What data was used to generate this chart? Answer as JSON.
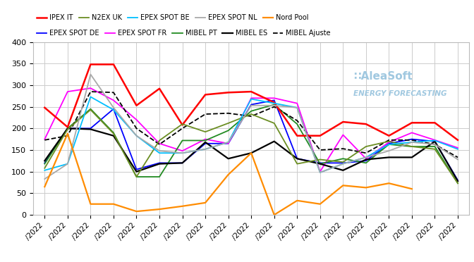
{
  "top_legend_names": [
    "EPEX SPOT DE",
    "EPEX SPOT FR",
    "MIBEL PT",
    "MIBEL ES",
    "MIBEL Ajuste"
  ],
  "bot_legend_names": [
    "IPEX IT",
    "N2EX UK",
    "EPEX SPOT BE",
    "EPEX SPOT NL",
    "Nord Pool"
  ],
  "x_labels": [
    "/2022",
    "/2022",
    "/2022",
    "/2022",
    "/2022",
    "/2022",
    "/2022",
    "/2022",
    "/2022",
    "/2022",
    "/2022",
    "/2022",
    "/2022",
    "/2022",
    "/2022",
    "/2022",
    "/2022",
    "/2022",
    "/2022"
  ],
  "series": {
    "EPEX SPOT DE": {
      "color": "#0000FF",
      "linewidth": 1.3,
      "linestyle": "solid",
      "values": [
        120,
        200,
        200,
        245,
        105,
        120,
        120,
        165,
        165,
        255,
        265,
        130,
        120,
        120,
        125,
        165,
        175,
        170,
        80
      ]
    },
    "EPEX SPOT FR": {
      "color": "#FF00FF",
      "linewidth": 1.3,
      "linestyle": "solid",
      "values": [
        175,
        285,
        293,
        265,
        220,
        165,
        148,
        175,
        165,
        270,
        270,
        258,
        100,
        185,
        130,
        168,
        190,
        173,
        155
      ]
    },
    "MIBEL PT": {
      "color": "#228B22",
      "linewidth": 1.3,
      "linestyle": "solid",
      "values": [
        118,
        200,
        245,
        190,
        88,
        88,
        172,
        172,
        195,
        240,
        255,
        210,
        118,
        130,
        120,
        163,
        158,
        158,
        73
      ]
    },
    "MIBEL ES": {
      "color": "#000000",
      "linewidth": 1.6,
      "linestyle": "solid",
      "values": [
        125,
        200,
        198,
        183,
        100,
        118,
        120,
        168,
        130,
        143,
        170,
        130,
        118,
        103,
        128,
        133,
        133,
        170,
        78
      ]
    },
    "MIBEL Ajuste": {
      "color": "#000000",
      "linewidth": 1.3,
      "linestyle": "dashed",
      "values": [
        173,
        183,
        285,
        283,
        200,
        163,
        200,
        233,
        235,
        228,
        250,
        218,
        150,
        153,
        143,
        173,
        173,
        163,
        133
      ]
    },
    "IPEX IT": {
      "color": "#FF0000",
      "linewidth": 1.8,
      "linestyle": "solid",
      "values": [
        248,
        203,
        348,
        348,
        253,
        292,
        208,
        278,
        283,
        285,
        260,
        183,
        183,
        215,
        210,
        183,
        213,
        213,
        173
      ]
    },
    "N2EX UK": {
      "color": "#6B8E23",
      "linewidth": 1.3,
      "linestyle": "solid",
      "values": [
        108,
        198,
        243,
        188,
        88,
        172,
        210,
        192,
        212,
        233,
        212,
        118,
        128,
        122,
        158,
        170,
        158,
        152,
        73
      ]
    },
    "EPEX SPOT BE": {
      "color": "#00BFFF",
      "linewidth": 1.3,
      "linestyle": "solid",
      "values": [
        103,
        118,
        273,
        243,
        183,
        143,
        143,
        152,
        168,
        268,
        258,
        248,
        98,
        118,
        133,
        163,
        168,
        172,
        152
      ]
    },
    "EPEX SPOT NL": {
      "color": "#A9A9A9",
      "linewidth": 1.3,
      "linestyle": "solid",
      "values": [
        83,
        118,
        325,
        248,
        183,
        148,
        143,
        152,
        168,
        253,
        253,
        248,
        98,
        118,
        133,
        148,
        168,
        163,
        128
      ]
    },
    "Nord Pool": {
      "color": "#FF8C00",
      "linewidth": 1.6,
      "linestyle": "solid",
      "values": [
        65,
        188,
        25,
        25,
        8,
        13,
        20,
        28,
        93,
        143,
        0,
        33,
        25,
        68,
        63,
        73,
        60,
        null,
        null
      ]
    }
  },
  "ylim": [
    0,
    400
  ],
  "yticks": [
    0,
    50,
    100,
    150,
    200,
    250,
    300,
    350,
    400
  ],
  "background_color": "#ffffff",
  "grid_color": "#cccccc",
  "watermark_line1": "∷AleaSoft",
  "watermark_line2": "ENERGY FORECASTING",
  "watermark_color": "#a0c8e0",
  "n_points": 19
}
